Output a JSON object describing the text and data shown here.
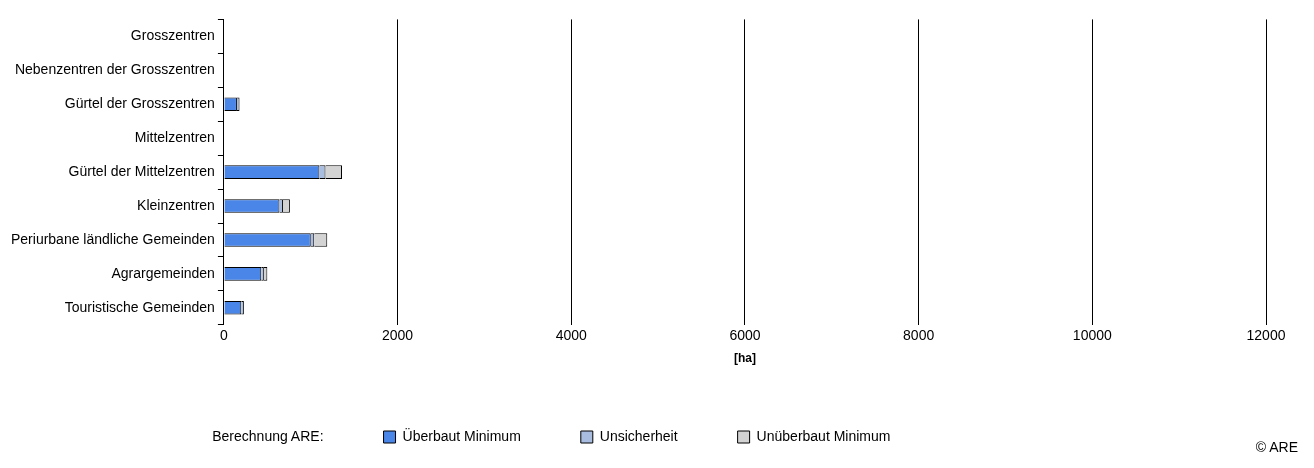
{
  "chart_data": {
    "type": "bar",
    "orientation": "horizontal",
    "stacked": true,
    "categories": [
      "Grosszentren",
      "Nebenzentren der Grosszentren",
      "Gürtel der Grosszentren",
      "Mittelzentren",
      "Gürtel der Mittelzentren",
      "Kleinzentren",
      "Periurbane ländliche Gemeinden",
      "Agrargemeinden",
      "Touristische Gemeinden"
    ],
    "series": [
      {
        "name": "Überbaut Minimum",
        "color": "#4a86e8",
        "values": [
          0,
          0,
          150,
          0,
          1100,
          640,
          1000,
          430,
          200
        ]
      },
      {
        "name": "Unsicherheit",
        "color": "#a9bde0",
        "values": [
          0,
          0,
          30,
          0,
          70,
          40,
          40,
          30,
          30
        ]
      },
      {
        "name": "Unüberbaut Minimum",
        "color": "#d3d3d3",
        "values": [
          0,
          0,
          0,
          0,
          190,
          80,
          150,
          40,
          0
        ]
      }
    ],
    "xlim": [
      0,
      12000
    ],
    "xticks": [
      0,
      2000,
      4000,
      6000,
      8000,
      10000,
      12000
    ],
    "xlabel": "[ha]",
    "legend": "bottom",
    "legend_title": "Berechnung ARE:",
    "grid": "x",
    "annotations": [
      "© ARE"
    ]
  }
}
